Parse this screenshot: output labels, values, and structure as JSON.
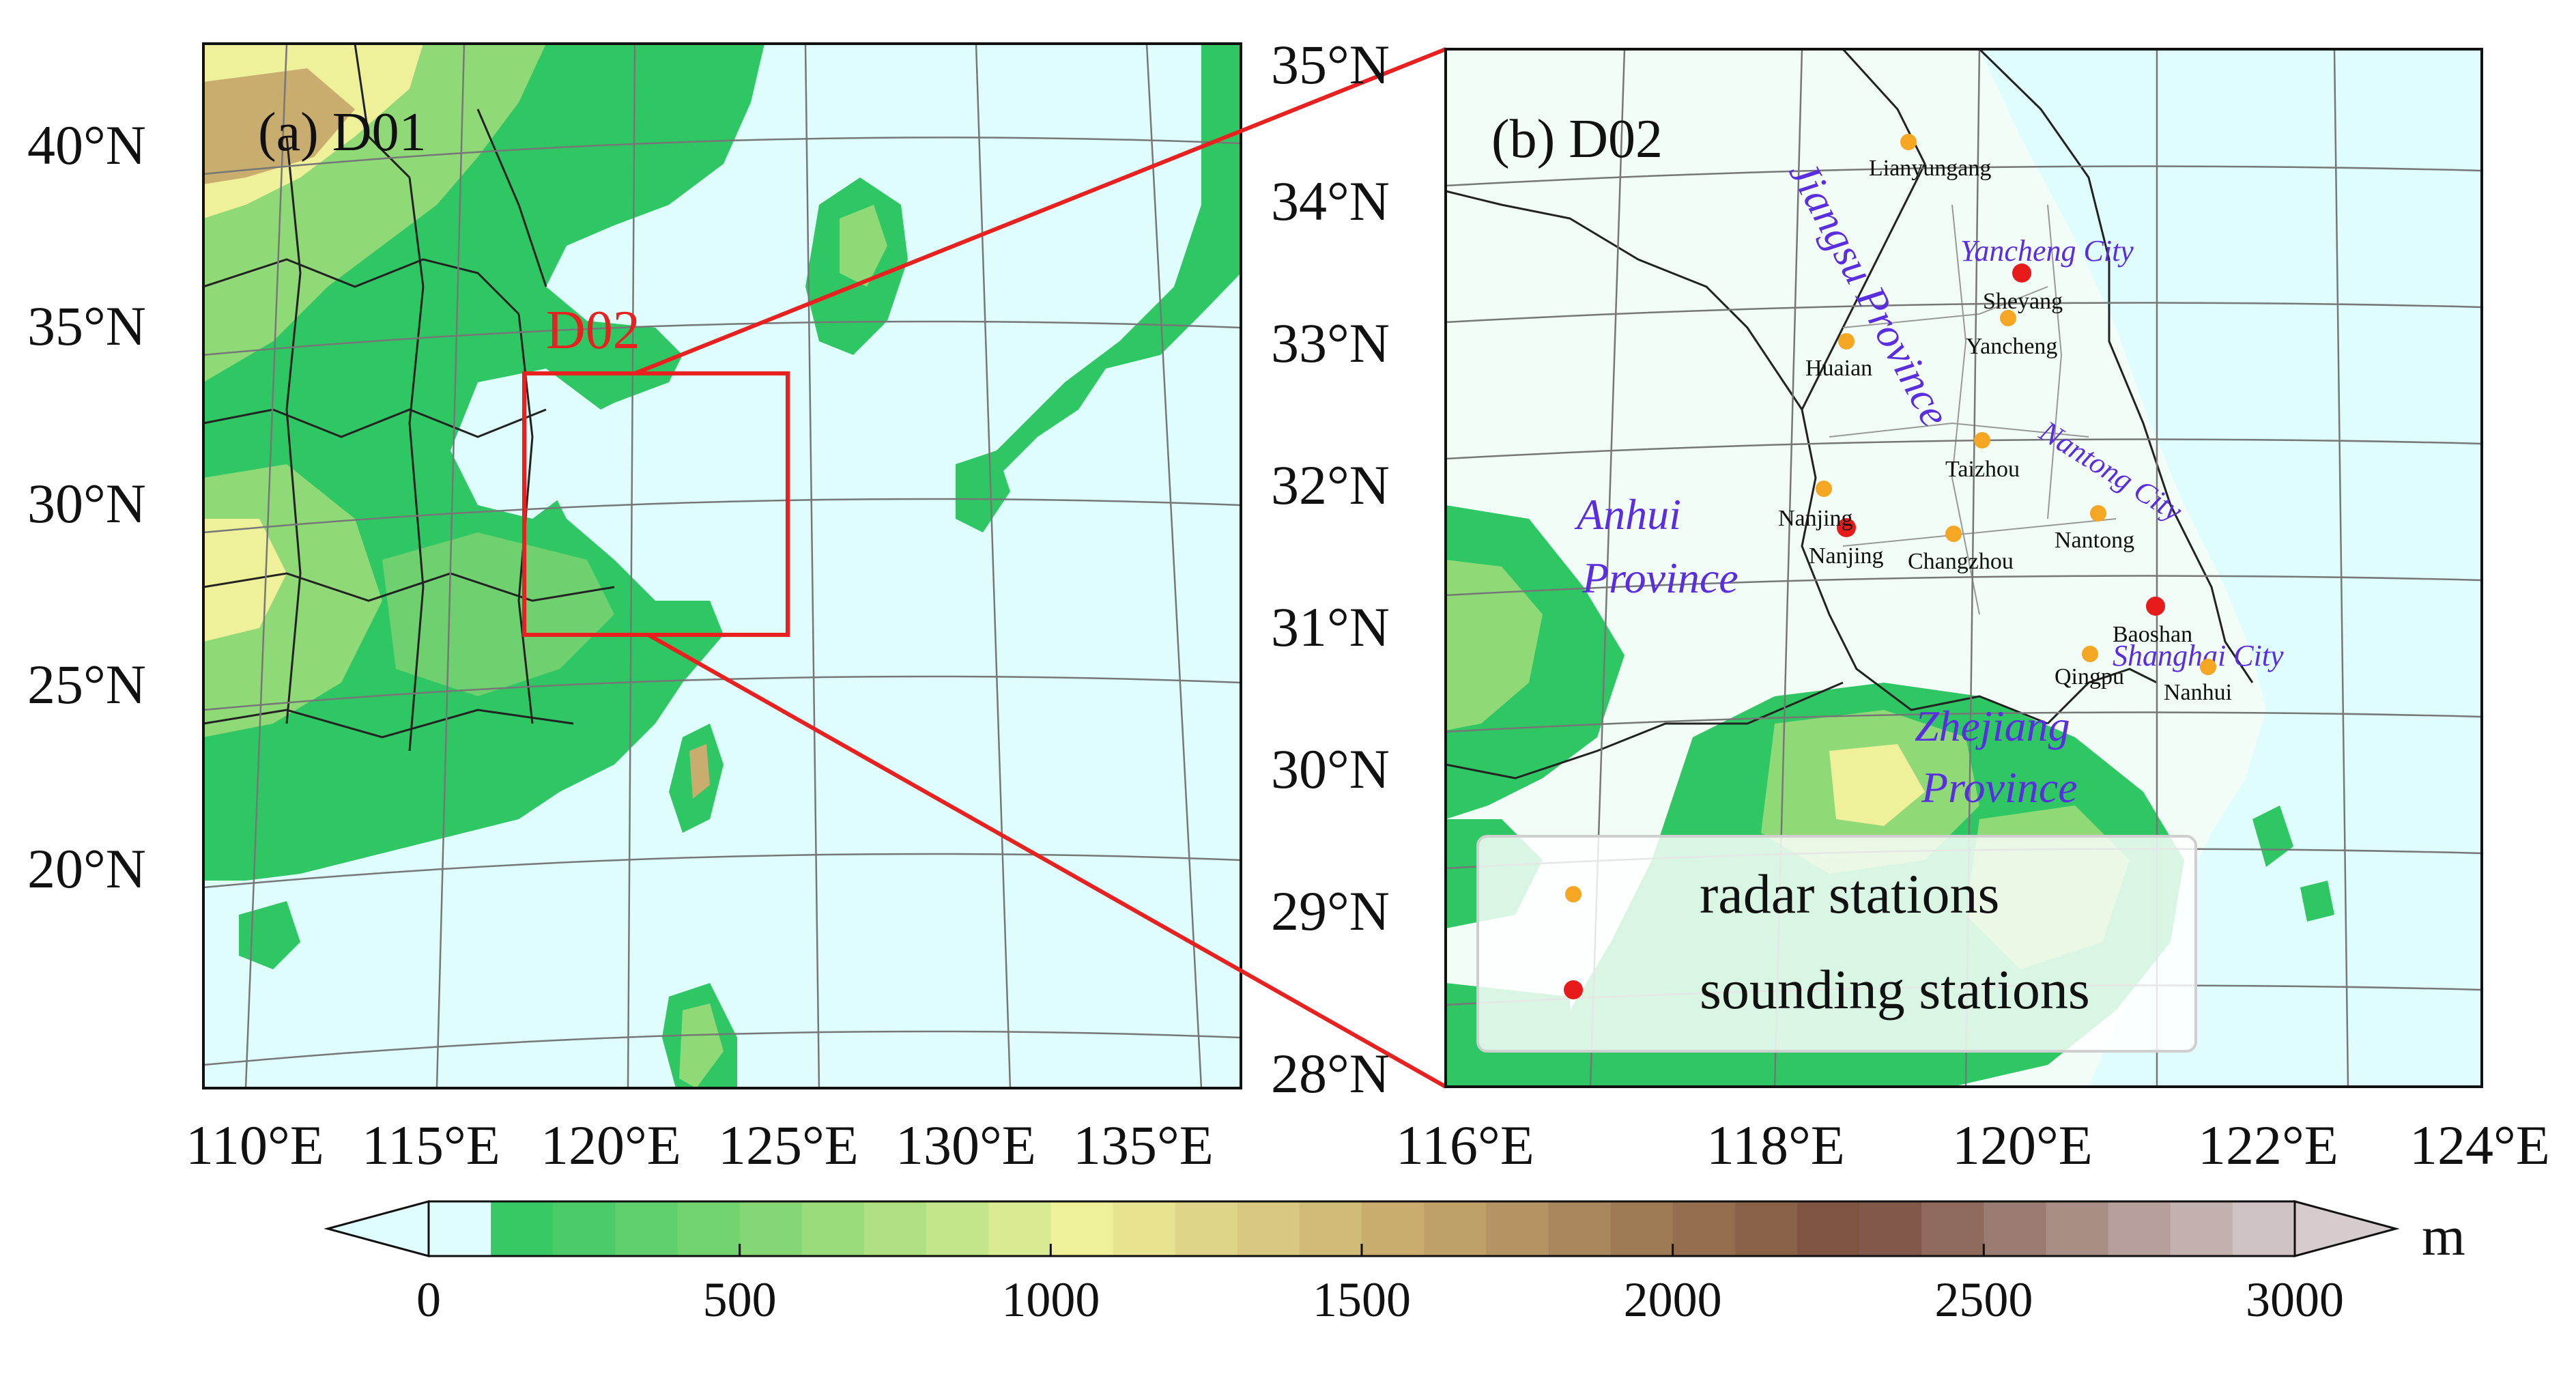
{
  "panel_a": {
    "label": "(a) D01",
    "domain_box_label": "D02",
    "lat_ticks": [
      "40°N",
      "35°N",
      "30°N",
      "25°N",
      "20°N"
    ],
    "lon_ticks": [
      "110°E",
      "115°E",
      "120°E",
      "125°E",
      "130°E",
      "135°E"
    ]
  },
  "panel_b": {
    "label": "(b) D02",
    "lat_ticks": [
      "35°N",
      "34°N",
      "33°N",
      "32°N",
      "31°N",
      "30°N",
      "29°N",
      "28°N"
    ],
    "lon_ticks": [
      "116°E",
      "118°E",
      "120°E",
      "122°E",
      "124°E"
    ],
    "regions": {
      "jiangsu": "Jiangsu Province",
      "anhui_1": "Anhui",
      "anhui_2": "Province",
      "zhejiang_1": "Zhejiang",
      "zhejiang_2": "Province",
      "yancheng_city": "Yancheng City",
      "nantong_city": "Nantong City",
      "shanghai_city": "Shanghai City"
    },
    "radar_stations": [
      "Lianyungang",
      "Huaian",
      "Yancheng",
      "Taizhou",
      "Nanjing",
      "Changzhou",
      "Nantong",
      "Qingpu",
      "Nanhui"
    ],
    "sounding_stations": [
      "Sheyang",
      "Nanjing",
      "Baoshan"
    ],
    "legend": {
      "radar": "radar stations",
      "sounding": "sounding stations"
    }
  },
  "colorbar": {
    "unit": "m",
    "ticks": [
      "0",
      "500",
      "1000",
      "1500",
      "2000",
      "2500",
      "3000"
    ],
    "min": 0,
    "max": 3000
  },
  "colors": {
    "sea": "#e0fdfd",
    "low_green": "#2fc763",
    "mid_green": "#8fd977",
    "yellow": "#eef09a",
    "tan": "#c9ad6f",
    "brown": "#8a6146",
    "high": "#d7cccd",
    "domain_box": "#e8201f",
    "region_text": "#5a2de0",
    "radar_marker": "#f5a623",
    "sounding_marker": "#e81b1b"
  }
}
